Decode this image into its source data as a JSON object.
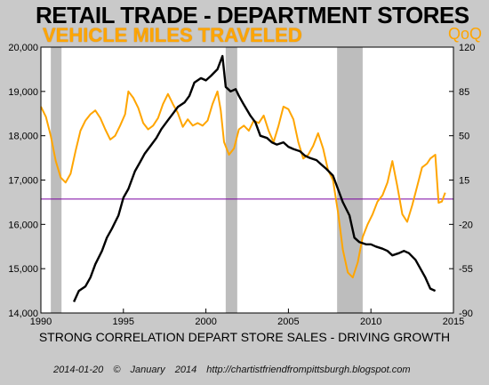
{
  "title": "RETAIL TRADE - DEPARTMENT STORES",
  "subtitle": "VEHICLE MILES TRAVELED",
  "right_tag": "QoQ",
  "caption": "STRONG CORRELATION DEPART STORE SALES - DRIVING GROWTH",
  "footer": {
    "date": "2014-01-20",
    "copyright": "©",
    "month": "January",
    "year": "2014",
    "url": "http://chartistfriendfrompittsburgh.blogspot.com"
  },
  "colors": {
    "background": "#c9c9c9",
    "plot_background": "#ffffff",
    "retail": "#000000",
    "vmt": "#ffa500",
    "zero_line": "#7a00a0",
    "recession": "#bdbdbd"
  },
  "chart_data": {
    "type": "line",
    "x_range": [
      1990,
      2015
    ],
    "x_ticks": [
      1990,
      1995,
      2000,
      2005,
      2010,
      2015
    ],
    "left_axis": {
      "range": [
        14000,
        20000
      ],
      "ticks": [
        14000,
        15000,
        16000,
        17000,
        18000,
        19000,
        20000
      ],
      "tick_labels": [
        "14,000",
        "15,000",
        "16,000",
        "17,000",
        "18,000",
        "19,000",
        "20,000"
      ]
    },
    "right_axis": {
      "range": [
        -90,
        120
      ],
      "ticks": [
        -90,
        -55,
        -20,
        15,
        50,
        85,
        120
      ]
    },
    "zero_line_right": 0,
    "recessions": [
      [
        1990.6,
        1991.25
      ],
      [
        2001.2,
        2001.9
      ],
      [
        2007.95,
        2009.5
      ]
    ],
    "series": [
      {
        "axis": "left",
        "points": [
          [
            1992.0,
            14250
          ],
          [
            1992.3,
            14500
          ],
          [
            1992.7,
            14600
          ],
          [
            1993.0,
            14800
          ],
          [
            1993.3,
            15100
          ],
          [
            1993.7,
            15400
          ],
          [
            1994.0,
            15700
          ],
          [
            1994.3,
            15900
          ],
          [
            1994.7,
            16200
          ],
          [
            1995.0,
            16600
          ],
          [
            1995.3,
            16800
          ],
          [
            1995.7,
            17200
          ],
          [
            1996.0,
            17400
          ],
          [
            1996.3,
            17600
          ],
          [
            1996.7,
            17800
          ],
          [
            1997.0,
            17950
          ],
          [
            1997.3,
            18150
          ],
          [
            1997.7,
            18350
          ],
          [
            1998.0,
            18500
          ],
          [
            1998.3,
            18650
          ],
          [
            1998.7,
            18750
          ],
          [
            1999.0,
            18900
          ],
          [
            1999.3,
            19200
          ],
          [
            1999.7,
            19300
          ],
          [
            2000.0,
            19250
          ],
          [
            2000.3,
            19350
          ],
          [
            2000.7,
            19500
          ],
          [
            2001.0,
            19800
          ],
          [
            2001.2,
            19100
          ],
          [
            2001.5,
            19000
          ],
          [
            2001.8,
            19050
          ],
          [
            2002.0,
            18900
          ],
          [
            2002.3,
            18700
          ],
          [
            2002.7,
            18450
          ],
          [
            2003.0,
            18300
          ],
          [
            2003.3,
            18000
          ],
          [
            2003.7,
            17950
          ],
          [
            2004.0,
            17850
          ],
          [
            2004.3,
            17800
          ],
          [
            2004.7,
            17850
          ],
          [
            2005.0,
            17750
          ],
          [
            2005.3,
            17700
          ],
          [
            2005.7,
            17650
          ],
          [
            2006.0,
            17550
          ],
          [
            2006.3,
            17500
          ],
          [
            2006.7,
            17450
          ],
          [
            2007.0,
            17350
          ],
          [
            2007.3,
            17250
          ],
          [
            2007.7,
            17100
          ],
          [
            2008.0,
            16800
          ],
          [
            2008.3,
            16500
          ],
          [
            2008.7,
            16200
          ],
          [
            2009.0,
            15700
          ],
          [
            2009.3,
            15600
          ],
          [
            2009.7,
            15550
          ],
          [
            2010.0,
            15550
          ],
          [
            2010.3,
            15500
          ],
          [
            2010.7,
            15450
          ],
          [
            2011.0,
            15400
          ],
          [
            2011.3,
            15300
          ],
          [
            2011.7,
            15350
          ],
          [
            2012.0,
            15400
          ],
          [
            2012.3,
            15350
          ],
          [
            2012.7,
            15200
          ],
          [
            2013.0,
            15000
          ],
          [
            2013.3,
            14800
          ],
          [
            2013.6,
            14550
          ],
          [
            2013.9,
            14500
          ]
        ]
      },
      {
        "axis": "right",
        "points": [
          [
            1990.0,
            73
          ],
          [
            1990.3,
            65
          ],
          [
            1990.6,
            50
          ],
          [
            1990.9,
            30
          ],
          [
            1991.2,
            17
          ],
          [
            1991.5,
            13
          ],
          [
            1991.8,
            20
          ],
          [
            1992.1,
            38
          ],
          [
            1992.4,
            54
          ],
          [
            1992.7,
            62
          ],
          [
            1993.0,
            67
          ],
          [
            1993.3,
            70
          ],
          [
            1993.6,
            64
          ],
          [
            1993.9,
            55
          ],
          [
            1994.2,
            47
          ],
          [
            1994.5,
            50
          ],
          [
            1994.8,
            58
          ],
          [
            1995.1,
            67
          ],
          [
            1995.3,
            85
          ],
          [
            1995.6,
            80
          ],
          [
            1995.9,
            72
          ],
          [
            1996.2,
            60
          ],
          [
            1996.5,
            55
          ],
          [
            1996.8,
            58
          ],
          [
            1997.1,
            64
          ],
          [
            1997.4,
            75
          ],
          [
            1997.7,
            83
          ],
          [
            1998.0,
            75
          ],
          [
            1998.3,
            68
          ],
          [
            1998.6,
            57
          ],
          [
            1998.9,
            63
          ],
          [
            1999.2,
            58
          ],
          [
            1999.5,
            60
          ],
          [
            1999.8,
            58
          ],
          [
            2000.1,
            62
          ],
          [
            2000.4,
            75
          ],
          [
            2000.7,
            85
          ],
          [
            2000.9,
            70
          ],
          [
            2001.1,
            45
          ],
          [
            2001.4,
            35
          ],
          [
            2001.7,
            40
          ],
          [
            2002.0,
            55
          ],
          [
            2002.3,
            58
          ],
          [
            2002.6,
            54
          ],
          [
            2002.9,
            62
          ],
          [
            2003.2,
            60
          ],
          [
            2003.5,
            66
          ],
          [
            2003.8,
            54
          ],
          [
            2004.1,
            45
          ],
          [
            2004.4,
            58
          ],
          [
            2004.7,
            73
          ],
          [
            2005.0,
            71
          ],
          [
            2005.3,
            63
          ],
          [
            2005.6,
            45
          ],
          [
            2005.9,
            32
          ],
          [
            2006.2,
            35
          ],
          [
            2006.5,
            42
          ],
          [
            2006.8,
            52
          ],
          [
            2007.1,
            40
          ],
          [
            2007.4,
            23
          ],
          [
            2007.7,
            15
          ],
          [
            2008.0,
            -10
          ],
          [
            2008.3,
            -40
          ],
          [
            2008.6,
            -58
          ],
          [
            2008.9,
            -62
          ],
          [
            2009.2,
            -50
          ],
          [
            2009.5,
            -30
          ],
          [
            2009.8,
            -20
          ],
          [
            2010.1,
            -12
          ],
          [
            2010.4,
            -2
          ],
          [
            2010.7,
            3
          ],
          [
            2011.0,
            13
          ],
          [
            2011.3,
            30
          ],
          [
            2011.6,
            10
          ],
          [
            2011.9,
            -12
          ],
          [
            2012.2,
            -18
          ],
          [
            2012.5,
            -5
          ],
          [
            2012.8,
            10
          ],
          [
            2013.1,
            25
          ],
          [
            2013.4,
            28
          ],
          [
            2013.6,
            32
          ],
          [
            2013.9,
            35
          ],
          [
            2014.1,
            -3
          ],
          [
            2014.3,
            -2
          ],
          [
            2014.5,
            5
          ]
        ]
      }
    ]
  }
}
